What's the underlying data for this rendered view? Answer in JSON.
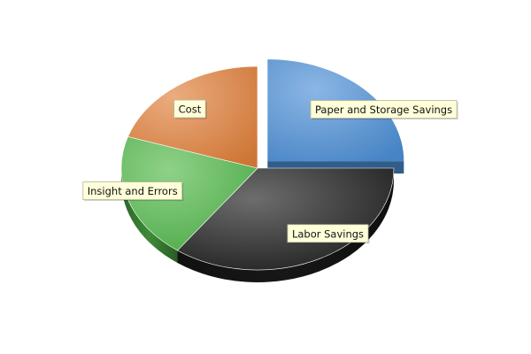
{
  "chart_data": {
    "type": "pie",
    "style": "3d-exploded",
    "title": "",
    "legend": "none",
    "slices": [
      {
        "label": "Paper and Storage Savings",
        "value": 25,
        "color": "#4d8fd6",
        "exploded": true
      },
      {
        "label": "Labor Savings",
        "value": 35,
        "color": "#1e1e1e",
        "exploded": false
      },
      {
        "label": "Insight and Errors",
        "value": 20,
        "color": "#52b84a",
        "exploded": false
      },
      {
        "label": "Cost",
        "value": 20,
        "color": "#e07f3a",
        "exploded": false
      }
    ]
  }
}
